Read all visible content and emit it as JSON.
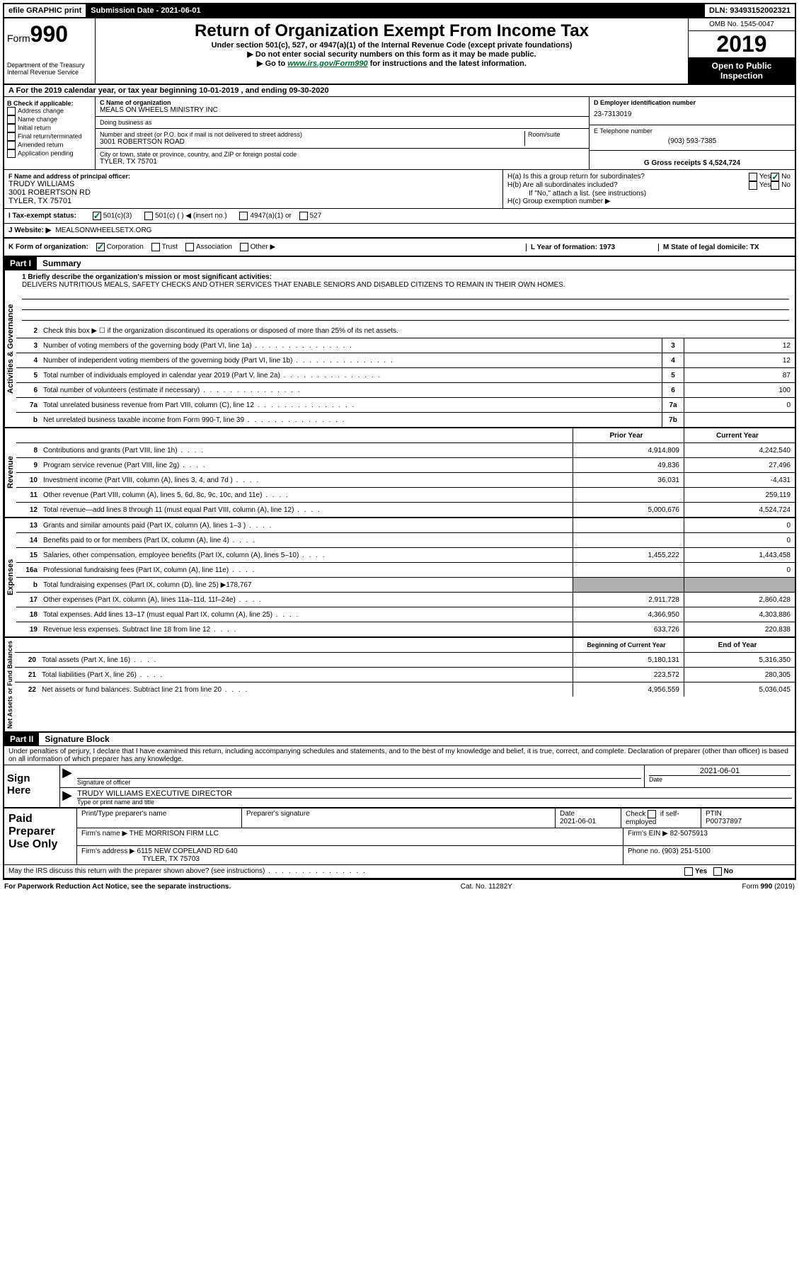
{
  "top_bar": {
    "efile": "efile GRAPHIC print",
    "submission_label": "Submission Date - 2021-06-01",
    "dln_label": "DLN: 93493152002321"
  },
  "header": {
    "form_prefix": "Form",
    "form_number": "990",
    "dept": "Department of the Treasury",
    "irs": "Internal Revenue Service",
    "title": "Return of Organization Exempt From Income Tax",
    "sub1": "Under section 501(c), 527, or 4947(a)(1) of the Internal Revenue Code (except private foundations)",
    "sub2": "▶ Do not enter social security numbers on this form as it may be made public.",
    "sub3_pre": "▶ Go to ",
    "sub3_link": "www.irs.gov/Form990",
    "sub3_post": " for instructions and the latest information.",
    "omb": "OMB No. 1545-0047",
    "year": "2019",
    "inspection": "Open to Public Inspection"
  },
  "section_a": "A For the 2019 calendar year, or tax year beginning 10-01-2019    , and ending 09-30-2020",
  "check_b": {
    "label": "B Check if applicable:",
    "opts": [
      "Address change",
      "Name change",
      "Initial return",
      "Final return/terminated",
      "Amended return",
      "Application pending"
    ]
  },
  "org": {
    "c_label": "C Name of organization",
    "name": "MEALS ON WHEELS MINISTRY INC",
    "dba_label": "Doing business as",
    "dba": "",
    "addr_label": "Number and street (or P.O. box if mail is not delivered to street address)",
    "room_label": "Room/suite",
    "addr": "3001 ROBERTSON ROAD",
    "city_label": "City or town, state or province, country, and ZIP or foreign postal code",
    "city": "TYLER, TX  75701"
  },
  "right_info": {
    "d_label": "D Employer identification number",
    "ein": "23-7313019",
    "e_label": "E Telephone number",
    "phone": "(903) 593-7385",
    "g_label": "G Gross receipts $ 4,524,724"
  },
  "officer": {
    "f_label": "F  Name and address of principal officer:",
    "name": "TRUDY WILLIAMS",
    "addr": "3001 ROBERTSON RD",
    "city": "TYLER, TX  75701"
  },
  "h_section": {
    "ha": "H(a)  Is this a group return for subordinates?",
    "hb": "H(b)  Are all subordinates included?",
    "hb_note": "If \"No,\" attach a list. (see instructions)",
    "hc": "H(c)  Group exemption number ▶",
    "yes": "Yes",
    "no": "No"
  },
  "tax_status": {
    "i_label": "I  Tax-exempt status:",
    "opt1": "501(c)(3)",
    "opt2": "501(c) (  ) ◀ (insert no.)",
    "opt3": "4947(a)(1) or",
    "opt4": "527"
  },
  "website": {
    "j_label": "J  Website: ▶",
    "url": "MEALSONWHEELSETX.ORG"
  },
  "k_row": {
    "k_label": "K Form of organization:",
    "opts": [
      "Corporation",
      "Trust",
      "Association",
      "Other ▶"
    ],
    "l_label": "L Year of formation: 1973",
    "m_label": "M State of legal domicile: TX"
  },
  "part1": {
    "header": "Part I",
    "title": "Summary"
  },
  "mission": {
    "q": "1  Briefly describe the organization's mission or most significant activities:",
    "text": "DELIVERS NUTRITIOUS MEALS, SAFETY CHECKS AND OTHER SERVICES THAT ENABLE SENIORS AND DISABLED CITIZENS TO REMAIN IN THEIR OWN HOMES."
  },
  "governance": {
    "label": "Activities & Governance",
    "line2": "Check this box ▶ ☐  if the organization discontinued its operations or disposed of more than 25% of its net assets.",
    "lines": [
      {
        "n": "3",
        "t": "Number of voting members of the governing body (Part VI, line 1a)",
        "box": "3",
        "v": "12"
      },
      {
        "n": "4",
        "t": "Number of independent voting members of the governing body (Part VI, line 1b)",
        "box": "4",
        "v": "12"
      },
      {
        "n": "5",
        "t": "Total number of individuals employed in calendar year 2019 (Part V, line 2a)",
        "box": "5",
        "v": "87"
      },
      {
        "n": "6",
        "t": "Total number of volunteers (estimate if necessary)",
        "box": "6",
        "v": "100"
      },
      {
        "n": "7a",
        "t": "Total unrelated business revenue from Part VIII, column (C), line 12",
        "box": "7a",
        "v": "0"
      },
      {
        "n": "b",
        "t": "Net unrelated business taxable income from Form 990-T, line 39",
        "box": "7b",
        "v": ""
      }
    ]
  },
  "two_col_header": {
    "prior": "Prior Year",
    "current": "Current Year"
  },
  "revenue": {
    "label": "Revenue",
    "lines": [
      {
        "n": "8",
        "t": "Contributions and grants (Part VIII, line 1h)",
        "p": "4,914,809",
        "c": "4,242,540"
      },
      {
        "n": "9",
        "t": "Program service revenue (Part VIII, line 2g)",
        "p": "49,836",
        "c": "27,496"
      },
      {
        "n": "10",
        "t": "Investment income (Part VIII, column (A), lines 3, 4, and 7d )",
        "p": "36,031",
        "c": "-4,431"
      },
      {
        "n": "11",
        "t": "Other revenue (Part VIII, column (A), lines 5, 6d, 8c, 9c, 10c, and 11e)",
        "p": "",
        "c": "259,119"
      },
      {
        "n": "12",
        "t": "Total revenue—add lines 8 through 11 (must equal Part VIII, column (A), line 12)",
        "p": "5,000,676",
        "c": "4,524,724"
      }
    ]
  },
  "expenses": {
    "label": "Expenses",
    "lines": [
      {
        "n": "13",
        "t": "Grants and similar amounts paid (Part IX, column (A), lines 1–3 )",
        "p": "",
        "c": "0"
      },
      {
        "n": "14",
        "t": "Benefits paid to or for members (Part IX, column (A), line 4)",
        "p": "",
        "c": "0"
      },
      {
        "n": "15",
        "t": "Salaries, other compensation, employee benefits (Part IX, column (A), lines 5–10)",
        "p": "1,455,222",
        "c": "1,443,458"
      },
      {
        "n": "16a",
        "t": "Professional fundraising fees (Part IX, column (A), line 11e)",
        "p": "",
        "c": "0"
      },
      {
        "n": "b",
        "t": "Total fundraising expenses (Part IX, column (D), line 25) ▶178,767",
        "gray": true
      },
      {
        "n": "17",
        "t": "Other expenses (Part IX, column (A), lines 11a–11d, 11f–24e)",
        "p": "2,911,728",
        "c": "2,860,428"
      },
      {
        "n": "18",
        "t": "Total expenses. Add lines 13–17 (must equal Part IX, column (A), line 25)",
        "p": "4,366,950",
        "c": "4,303,886"
      },
      {
        "n": "19",
        "t": "Revenue less expenses. Subtract line 18 from line 12",
        "p": "633,726",
        "c": "220,838"
      }
    ]
  },
  "netassets": {
    "label": "Net Assets or Fund Balances",
    "header": {
      "begin": "Beginning of Current Year",
      "end": "End of Year"
    },
    "lines": [
      {
        "n": "20",
        "t": "Total assets (Part X, line 16)",
        "p": "5,180,131",
        "c": "5,316,350"
      },
      {
        "n": "21",
        "t": "Total liabilities (Part X, line 26)",
        "p": "223,572",
        "c": "280,305"
      },
      {
        "n": "22",
        "t": "Net assets or fund balances. Subtract line 21 from line 20",
        "p": "4,956,559",
        "c": "5,036,045"
      }
    ]
  },
  "part2": {
    "header": "Part II",
    "title": "Signature Block"
  },
  "penalties": "Under penalties of perjury, I declare that I have examined this return, including accompanying schedules and statements, and to the best of my knowledge and belief, it is true, correct, and complete. Declaration of preparer (other than officer) is based on all information of which preparer has any knowledge.",
  "sign": {
    "label": "Sign Here",
    "sig_label": "Signature of officer",
    "date_label": "Date",
    "date": "2021-06-01",
    "name": "TRUDY WILLIAMS  EXECUTIVE DIRECTOR",
    "name_label": "Type or print name and title"
  },
  "preparer": {
    "label": "Paid Preparer Use Only",
    "h1": "Print/Type preparer's name",
    "h2": "Preparer's signature",
    "h3": "Date",
    "date": "2021-06-01",
    "h4_pre": "Check",
    "h4_post": "if self-employed",
    "h5": "PTIN",
    "ptin": "P00737897",
    "firm_label": "Firm's name    ▶",
    "firm": "THE MORRISON FIRM LLC",
    "ein_label": "Firm's EIN ▶",
    "ein": "82-5075913",
    "addr_label": "Firm's address ▶",
    "addr1": "6115 NEW COPELAND RD 640",
    "addr2": "TYLER, TX  75703",
    "phone_label": "Phone no.",
    "phone": "(903) 251-5100"
  },
  "discuss": "May the IRS discuss this return with the preparer shown above? (see instructions)",
  "footer": {
    "left": "For Paperwork Reduction Act Notice, see the separate instructions.",
    "mid": "Cat. No. 11282Y",
    "right_pre": "Form ",
    "right_form": "990",
    "right_post": " (2019)"
  }
}
